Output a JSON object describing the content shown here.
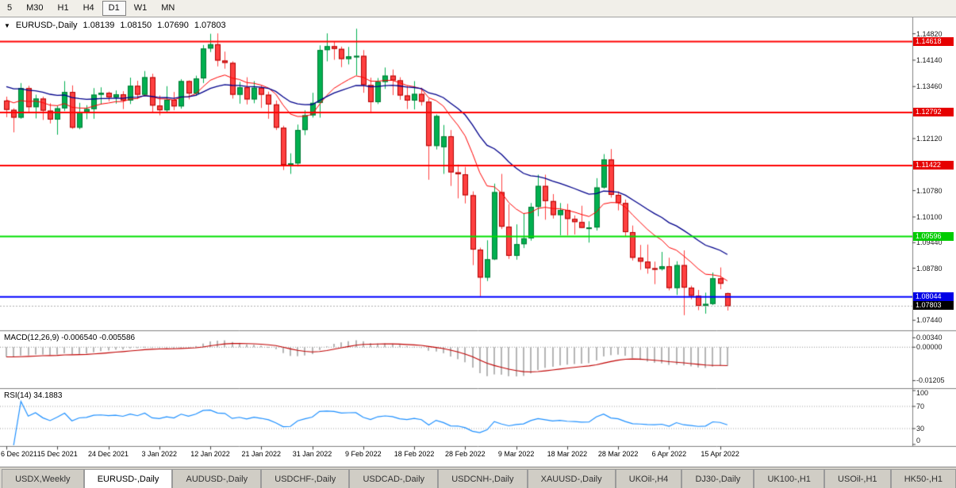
{
  "toolbar": {
    "timeframes": [
      "5",
      "M30",
      "H1",
      "H4",
      "D1",
      "W1",
      "MN"
    ],
    "active": "D1"
  },
  "chart": {
    "collapse_icon": "▼",
    "symbol_period": "EURUSD-,Daily",
    "open": "1.08139",
    "high": "1.08150",
    "low": "1.07690",
    "close": "1.07803"
  },
  "colors": {
    "up": "#00B050",
    "up_border": "#007A33",
    "down": "#FF4040",
    "down_border": "#B00000",
    "ma_fast": "#FF0000",
    "ma_slow": "#00008B",
    "macd_hist": "#B5B5B5",
    "macd_signal": "#C00000",
    "rsi_line": "#1E90FF",
    "bid_line": "#B0B0B0",
    "separator": "#808080"
  },
  "price_scale": {
    "ticks": [
      {
        "label": "1.14820",
        "value": 1.1482
      },
      {
        "label": "1.14140",
        "value": 1.1414
      },
      {
        "label": "1.13460",
        "value": 1.1346
      },
      {
        "label": "1.12120",
        "value": 1.1212
      },
      {
        "label": "1.10780",
        "value": 1.1078
      },
      {
        "label": "1.10100",
        "value": 1.101
      },
      {
        "label": "1.09440",
        "value": 1.0944
      },
      {
        "label": "1.08780",
        "value": 1.0878
      },
      {
        "label": "1.07440",
        "value": 1.0744
      }
    ],
    "level_labels": [
      {
        "label": "1.14618",
        "value": 1.14618,
        "bg": "#E60000",
        "fg": "#FFFFFF"
      },
      {
        "label": "1.12792",
        "value": 1.12792,
        "bg": "#E60000",
        "fg": "#FFFFFF"
      },
      {
        "label": "1.11422",
        "value": 1.11422,
        "bg": "#E60000",
        "fg": "#FFFFFF"
      },
      {
        "label": "1.09596",
        "value": 1.09596,
        "bg": "#00CC00",
        "fg": "#FFFFFF"
      },
      {
        "label": "1.08044",
        "value": 1.08044,
        "bg": "#0000E6",
        "fg": "#FFFFFF"
      },
      {
        "label": "1.07803",
        "value": 1.07803,
        "bg": "#000000",
        "fg": "#FFFFFF"
      }
    ]
  },
  "chart_data": {
    "type": "candlestick",
    "symbol": "EURUSD-,Daily",
    "title": "EURUSD-,Daily 1.08139 1.08150 1.07690 1.07803",
    "price_range": [
      1.072,
      1.152
    ],
    "x_label_step": 7,
    "x_labels": [
      "6 Dec 2021",
      "15 Dec 2021",
      "24 Dec 2021",
      "3 Jan 2022",
      "12 Jan 2022",
      "21 Jan 2022",
      "31 Jan 2022",
      "9 Feb 2022",
      "18 Feb 2022",
      "28 Feb 2022",
      "9 Mar 2022",
      "18 Mar 2022",
      "28 Mar 2022",
      "6 Apr 2022",
      "15 Apr 2022"
    ],
    "levels": [
      {
        "value": 1.14618,
        "color": "#FF0000",
        "width": 2
      },
      {
        "value": 1.12792,
        "color": "#FF0000",
        "width": 2
      },
      {
        "value": 1.11422,
        "color": "#FF0000",
        "width": 2
      },
      {
        "value": 1.09596,
        "color": "#00E000",
        "width": 2
      },
      {
        "value": 1.08044,
        "color": "#0000FF",
        "width": 2
      }
    ],
    "overlays": [
      {
        "name": "ema-fast",
        "period": 12,
        "color": "#FF0000"
      },
      {
        "name": "ema-slow",
        "period": 26,
        "color": "#00008B"
      }
    ],
    "candles": [
      [
        1.131,
        1.132,
        1.1267,
        1.1286
      ],
      [
        1.1286,
        1.129,
        1.1228,
        1.1266
      ],
      [
        1.1266,
        1.1355,
        1.1263,
        1.1342
      ],
      [
        1.1342,
        1.1348,
        1.128,
        1.1293
      ],
      [
        1.1293,
        1.1325,
        1.1264,
        1.1315
      ],
      [
        1.1315,
        1.132,
        1.126,
        1.1284
      ],
      [
        1.1284,
        1.1303,
        1.1251,
        1.1261
      ],
      [
        1.1261,
        1.1297,
        1.1222,
        1.129
      ],
      [
        1.129,
        1.136,
        1.1283,
        1.1332
      ],
      [
        1.1332,
        1.1349,
        1.1237,
        1.124
      ],
      [
        1.124,
        1.1304,
        1.1236,
        1.128
      ],
      [
        1.128,
        1.1298,
        1.1262,
        1.1288
      ],
      [
        1.1288,
        1.1342,
        1.1263,
        1.1325
      ],
      [
        1.1325,
        1.1344,
        1.13,
        1.133
      ],
      [
        1.133,
        1.1333,
        1.1308,
        1.1318
      ],
      [
        1.1318,
        1.1336,
        1.1302,
        1.1326
      ],
      [
        1.1326,
        1.1334,
        1.1288,
        1.131
      ],
      [
        1.131,
        1.1369,
        1.1301,
        1.1348
      ],
      [
        1.1348,
        1.1361,
        1.1314,
        1.1325
      ],
      [
        1.1325,
        1.1386,
        1.1321,
        1.137
      ],
      [
        1.137,
        1.1379,
        1.1279,
        1.1297
      ],
      [
        1.1297,
        1.1323,
        1.1272,
        1.1285
      ],
      [
        1.1285,
        1.1347,
        1.1279,
        1.1312
      ],
      [
        1.1312,
        1.1332,
        1.1285,
        1.1295
      ],
      [
        1.1295,
        1.1365,
        1.1289,
        1.136
      ],
      [
        1.136,
        1.1362,
        1.1313,
        1.1328
      ],
      [
        1.1328,
        1.1374,
        1.1322,
        1.1367
      ],
      [
        1.1367,
        1.1453,
        1.1355,
        1.1444
      ],
      [
        1.1444,
        1.1482,
        1.1435,
        1.1455
      ],
      [
        1.1455,
        1.1483,
        1.1398,
        1.1413
      ],
      [
        1.1413,
        1.1436,
        1.1392,
        1.1407
      ],
      [
        1.1407,
        1.1411,
        1.1315,
        1.1325
      ],
      [
        1.1325,
        1.1358,
        1.1302,
        1.1344
      ],
      [
        1.1344,
        1.137,
        1.13,
        1.1313
      ],
      [
        1.1313,
        1.136,
        1.1303,
        1.1343
      ],
      [
        1.1343,
        1.1349,
        1.1291,
        1.1325
      ],
      [
        1.1325,
        1.1333,
        1.1263,
        1.13
      ],
      [
        1.13,
        1.131,
        1.1234,
        1.124
      ],
      [
        1.124,
        1.1245,
        1.1131,
        1.1144
      ],
      [
        1.1144,
        1.1174,
        1.1121,
        1.1148
      ],
      [
        1.1148,
        1.1248,
        1.114,
        1.1234
      ],
      [
        1.1234,
        1.1285,
        1.1221,
        1.1272
      ],
      [
        1.1272,
        1.133,
        1.1266,
        1.1304
      ],
      [
        1.1304,
        1.1452,
        1.1266,
        1.144
      ],
      [
        1.144,
        1.1483,
        1.1411,
        1.145
      ],
      [
        1.145,
        1.1461,
        1.1415,
        1.1443
      ],
      [
        1.1443,
        1.1449,
        1.1396,
        1.1417
      ],
      [
        1.1417,
        1.1448,
        1.1403,
        1.1424
      ],
      [
        1.1424,
        1.1495,
        1.1375,
        1.1425
      ],
      [
        1.1425,
        1.144,
        1.133,
        1.135
      ],
      [
        1.135,
        1.1369,
        1.1277,
        1.1306
      ],
      [
        1.1306,
        1.1368,
        1.1301,
        1.1358
      ],
      [
        1.1358,
        1.1395,
        1.134,
        1.1374
      ],
      [
        1.1374,
        1.139,
        1.1324,
        1.1362
      ],
      [
        1.1362,
        1.137,
        1.1312,
        1.1323
      ],
      [
        1.1323,
        1.1348,
        1.1288,
        1.131
      ],
      [
        1.131,
        1.136,
        1.1287,
        1.1327
      ],
      [
        1.1327,
        1.1343,
        1.1297,
        1.1307
      ],
      [
        1.1307,
        1.1315,
        1.1106,
        1.1193
      ],
      [
        1.1193,
        1.1274,
        1.1184,
        1.127
      ],
      [
        1.119,
        1.1247,
        1.1121,
        1.1218
      ],
      [
        1.1218,
        1.1234,
        1.109,
        1.1125
      ],
      [
        1.1125,
        1.1145,
        1.1058,
        1.112
      ],
      [
        1.112,
        1.1139,
        1.1045,
        1.1066
      ],
      [
        1.1066,
        1.1076,
        1.0886,
        1.0926
      ],
      [
        1.0926,
        1.0931,
        1.0806,
        1.0854
      ],
      [
        1.0854,
        1.095,
        1.0845,
        1.0901
      ],
      [
        1.0901,
        1.1096,
        1.0899,
        1.1074
      ],
      [
        1.1074,
        1.1121,
        1.0979,
        1.0985
      ],
      [
        1.0985,
        1.1043,
        1.0902,
        1.091
      ],
      [
        1.091,
        1.0991,
        1.09,
        1.094
      ],
      [
        1.094,
        1.102,
        1.093,
        1.0955
      ],
      [
        1.0955,
        1.1046,
        1.0949,
        1.1036
      ],
      [
        1.1036,
        1.1119,
        1.1012,
        1.109
      ],
      [
        1.109,
        1.1119,
        1.1003,
        1.1051
      ],
      [
        1.1051,
        1.1069,
        1.1006,
        1.1015
      ],
      [
        1.1015,
        1.1046,
        1.0963,
        1.1028
      ],
      [
        1.1028,
        1.1044,
        1.0963,
        1.1005
      ],
      [
        1.1005,
        1.1014,
        1.0965,
        1.0997
      ],
      [
        1.0997,
        1.1039,
        1.0981,
        1.0982
      ],
      [
        1.0982,
        1.0999,
        1.0944,
        1.0983
      ],
      [
        1.0983,
        1.111,
        1.0975,
        1.1086
      ],
      [
        1.1086,
        1.1172,
        1.1083,
        1.1158
      ],
      [
        1.1158,
        1.1185,
        1.106,
        1.1067
      ],
      [
        1.1067,
        1.1076,
        1.1027,
        1.1046
      ],
      [
        1.1046,
        1.1055,
        1.096,
        1.0971
      ],
      [
        1.0971,
        1.0988,
        1.0898,
        1.0905
      ],
      [
        1.0905,
        1.0938,
        1.0874,
        1.0895
      ],
      [
        1.0895,
        1.0939,
        1.0864,
        1.0878
      ],
      [
        1.0878,
        1.0895,
        1.0837,
        1.0876
      ],
      [
        1.0876,
        1.092,
        1.0872,
        1.0883
      ],
      [
        1.0883,
        1.0905,
        1.0821,
        1.0827
      ],
      [
        1.0827,
        1.0896,
        1.0809,
        1.0886
      ],
      [
        1.0886,
        1.0924,
        1.0757,
        1.0828
      ],
      [
        1.0828,
        1.0833,
        1.0798,
        1.0807
      ],
      [
        1.0807,
        1.0822,
        1.077,
        1.0781
      ],
      [
        1.0781,
        1.0815,
        1.0761,
        1.0786
      ],
      [
        1.0786,
        1.0867,
        1.0783,
        1.0852
      ],
      [
        1.0852,
        1.088,
        1.0824,
        1.0838
      ],
      [
        1.08139,
        1.0815,
        1.0769,
        1.07803
      ]
    ],
    "indicators": {
      "macd": {
        "type": "macd",
        "label": "MACD(12,26,9)",
        "value_text": "-0.006540 -0.005586",
        "fast": 12,
        "slow": 26,
        "signal": 9,
        "range": [
          -0.0145,
          0.0055
        ],
        "scale_ticks": [
          {
            "label": "0.00340",
            "value": 0.0034
          },
          {
            "label": "0.00000",
            "value": 0
          },
          {
            "label": "-0.01205",
            "value": -0.01205
          }
        ]
      },
      "rsi": {
        "type": "rsi",
        "label": "RSI(14)",
        "value_text": "34.1883",
        "period": 14,
        "range": [
          0,
          100
        ],
        "levels": [
          30,
          70
        ],
        "scale_ticks": [
          {
            "label": "100",
            "value": 100
          },
          {
            "label": "70",
            "value": 70
          },
          {
            "label": "30",
            "value": 30
          },
          {
            "label": "0",
            "value": 0
          }
        ]
      }
    }
  },
  "bottom_tabs": {
    "active": "EURUSD-,Daily",
    "tabs": [
      "USDX,Weekly",
      "EURUSD-,Daily",
      "AUDUSD-,Daily",
      "USDCHF-,Daily",
      "USDCAD-,Daily",
      "USDCNH-,Daily",
      "XAUUSD-,Daily",
      "UKOil-,H4",
      "DJ30-,Daily",
      "UK100-,H1",
      "USOil-,H1",
      "HK50-,H1"
    ]
  }
}
